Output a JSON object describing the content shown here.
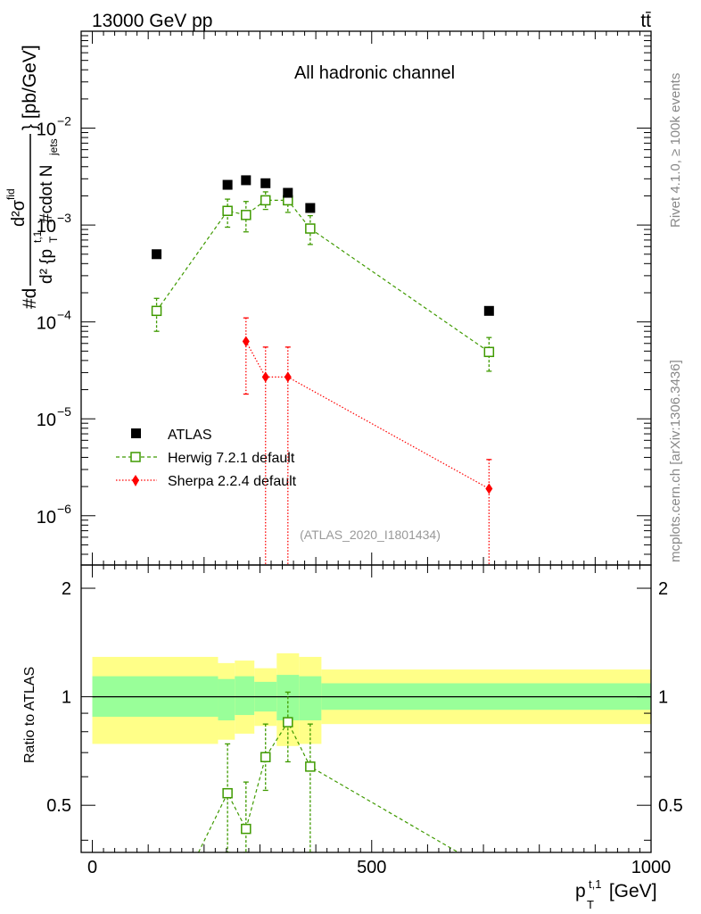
{
  "header": {
    "energy_label": "13000 GeV pp",
    "process_label": "tt̄",
    "channel_title": "All hadronic channel",
    "analysis_id": "(ATLAS_2020_I1801434)"
  },
  "side_labels": {
    "rivet": "Rivet 4.1.0, ≥ 100k events",
    "mcplots": "mcplots.cern.ch [arXiv:1306.3436]"
  },
  "axes": {
    "main_ylabel_prefix": "#d",
    "main_ylabel_numerator": "d²σ",
    "main_ylabel_numerator_sup": "fid",
    "main_ylabel_denominator": "d² {p",
    "main_ylabel_denominator_sub": "T",
    "main_ylabel_denominator_sup": "t,1",
    "main_ylabel_denominator_rest": "#cdot N",
    "main_ylabel_denominator_sub2": "jets",
    "main_ylabel_units": "} [pb/GeV]",
    "ratio_ylabel": "Ratio to ATLAS",
    "xlabel_main": "p",
    "xlabel_sub": "T",
    "xlabel_sup": "t,1",
    "xlabel_units": " [GeV]",
    "main_y_ticks": [
      {
        "exp": "-6",
        "value": 1e-06
      },
      {
        "exp": "-5",
        "value": 1e-05
      },
      {
        "exp": "-4",
        "value": 0.0001
      },
      {
        "exp": "-3",
        "value": 0.001
      },
      {
        "exp": "-2",
        "value": 0.01
      }
    ],
    "ratio_y_ticks": [
      "0.5",
      "1",
      "2"
    ],
    "x_ticks": [
      "0",
      "500",
      "1000"
    ]
  },
  "legend": {
    "atlas": "ATLAS",
    "herwig": "Herwig 7.2.1 default",
    "sherpa": "Sherpa 2.2.4 default"
  },
  "colors": {
    "atlas": "#000000",
    "herwig": "#3f9a00",
    "sherpa": "#ff0000",
    "band_inner": "#99ff99",
    "band_outer": "#ffff88"
  },
  "chart_data": [
    {
      "type": "scatter",
      "title": "All hadronic channel",
      "xlabel": "p_T^{t,1} [GeV]",
      "ylabel": "d²σ^fid / d²{p_T^{t,1} · N_jets} [pb/GeV]",
      "xlim": [
        -20,
        1000
      ],
      "ylim": [
        3.1e-07,
        0.1
      ],
      "yscale": "log",
      "series": [
        {
          "name": "ATLAS",
          "points": [
            {
              "x": 115,
              "y": 0.0005
            },
            {
              "x": 242,
              "y": 0.0026
            },
            {
              "x": 275,
              "y": 0.0029
            },
            {
              "x": 310,
              "y": 0.0027
            },
            {
              "x": 350,
              "y": 0.00215
            },
            {
              "x": 390,
              "y": 0.0015
            },
            {
              "x": 710,
              "y": 0.00013
            }
          ]
        },
        {
          "name": "Herwig 7.2.1 default",
          "points": [
            {
              "x": 115,
              "y": 0.00013,
              "lo": 8e-05,
              "hi": 0.000175
            },
            {
              "x": 242,
              "y": 0.0014,
              "lo": 0.00095,
              "hi": 0.00185
            },
            {
              "x": 275,
              "y": 0.00127,
              "lo": 0.00085,
              "hi": 0.00175
            },
            {
              "x": 310,
              "y": 0.0018,
              "lo": 0.00145,
              "hi": 0.0022
            },
            {
              "x": 350,
              "y": 0.0018,
              "lo": 0.00135,
              "hi": 0.00225
            },
            {
              "x": 390,
              "y": 0.00092,
              "lo": 0.00063,
              "hi": 0.00125
            },
            {
              "x": 710,
              "y": 4.9e-05,
              "lo": 3.1e-05,
              "hi": 6.9e-05
            }
          ]
        },
        {
          "name": "Sherpa 2.2.4 default",
          "points": [
            {
              "x": 275,
              "y": 6.3e-05,
              "lo": 1.8e-05,
              "hi": 0.00011
            },
            {
              "x": 310,
              "y": 2.7e-05,
              "lo": 1e-09,
              "hi": 5.5e-05
            },
            {
              "x": 350,
              "y": 2.7e-05,
              "lo": 1e-09,
              "hi": 5.5e-05
            },
            {
              "x": 710,
              "y": 1.9e-06,
              "lo": 1e-09,
              "hi": 3.8e-06
            }
          ]
        }
      ]
    },
    {
      "type": "scatter",
      "ylabel": "Ratio to ATLAS",
      "xlabel": "p_T^{t,1} [GeV]",
      "xlim": [
        -20,
        1000
      ],
      "ylim": [
        0.37,
        2.32
      ],
      "yscale": "log",
      "bands": [
        {
          "x0": 0,
          "x1": 225,
          "inner_lo": 0.88,
          "inner_hi": 1.14,
          "outer_lo": 0.74,
          "outer_hi": 1.29
        },
        {
          "x0": 225,
          "x1": 255,
          "inner_lo": 0.86,
          "inner_hi": 1.12,
          "outer_lo": 0.76,
          "outer_hi": 1.24
        },
        {
          "x0": 255,
          "x1": 290,
          "inner_lo": 0.89,
          "inner_hi": 1.14,
          "outer_lo": 0.79,
          "outer_hi": 1.26
        },
        {
          "x0": 290,
          "x1": 330,
          "inner_lo": 0.91,
          "inner_hi": 1.1,
          "outer_lo": 0.83,
          "outer_hi": 1.2
        },
        {
          "x0": 330,
          "x1": 370,
          "inner_lo": 0.86,
          "inner_hi": 1.15,
          "outer_lo": 0.73,
          "outer_hi": 1.32
        },
        {
          "x0": 370,
          "x1": 410,
          "inner_lo": 0.86,
          "inner_hi": 1.14,
          "outer_lo": 0.74,
          "outer_hi": 1.29
        },
        {
          "x0": 410,
          "x1": 1000,
          "inner_lo": 0.92,
          "inner_hi": 1.09,
          "outer_lo": 0.84,
          "outer_hi": 1.19
        }
      ],
      "series": [
        {
          "name": "Herwig 7.2.1 default",
          "points": [
            {
              "x": 242,
              "y": 0.54,
              "lo": 0.37,
              "hi": 0.74
            },
            {
              "x": 275,
              "y": 0.43,
              "lo": 0.37,
              "hi": 0.58
            },
            {
              "x": 310,
              "y": 0.68,
              "lo": 0.55,
              "hi": 0.84
            },
            {
              "x": 350,
              "y": 0.85,
              "lo": 0.66,
              "hi": 1.03
            },
            {
              "x": 390,
              "y": 0.64,
              "lo": 0.37,
              "hi": 0.84
            }
          ],
          "line_points": [
            {
              "x": 190,
              "y": 0.37
            },
            {
              "x": 242,
              "y": 0.54
            },
            {
              "x": 275,
              "y": 0.43
            },
            {
              "x": 310,
              "y": 0.68
            },
            {
              "x": 350,
              "y": 0.85
            },
            {
              "x": 390,
              "y": 0.64
            },
            {
              "x": 655,
              "y": 0.37
            }
          ]
        }
      ]
    }
  ]
}
